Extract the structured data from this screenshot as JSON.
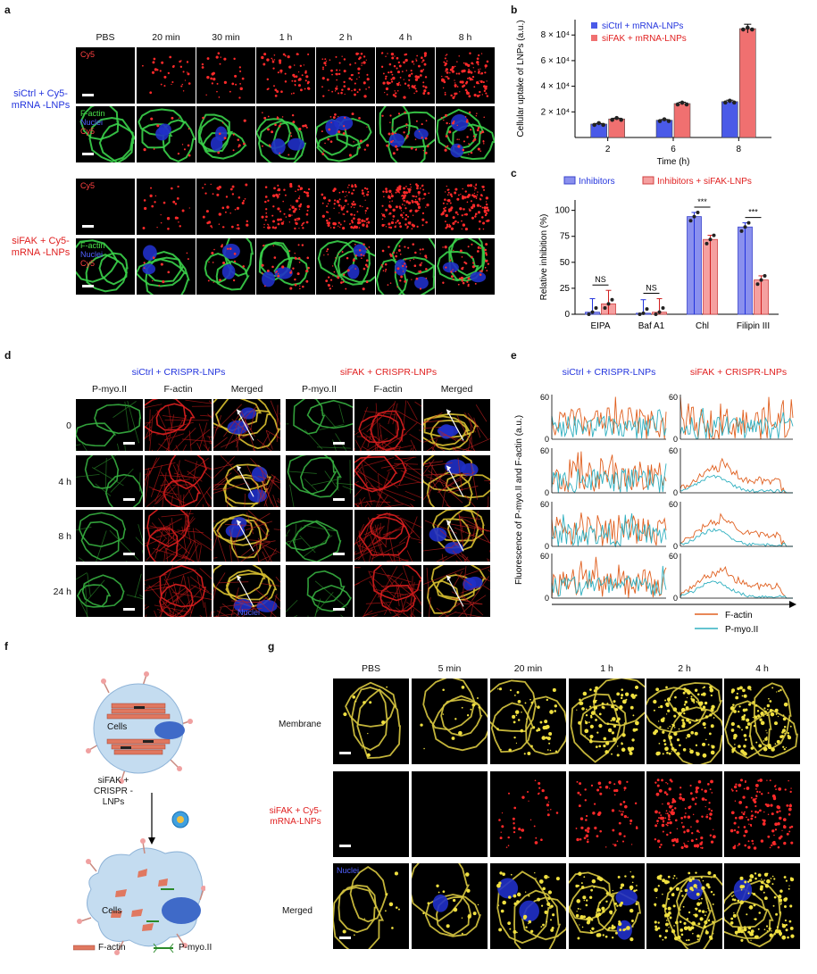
{
  "panel_letters": {
    "a": "a",
    "b": "b",
    "c": "c",
    "d": "d",
    "e": "e",
    "f": "f",
    "g": "g"
  },
  "a": {
    "columns": [
      "PBS",
      "20 min",
      "30 min",
      "1 h",
      "2 h",
      "4 h",
      "8 h"
    ],
    "group1": "siCtrl + Cy5-mRNA -LNPs",
    "group2": "siFAK + Cy5-mRNA -LNPs",
    "ch_cy5": "Cy5",
    "ch_factin": "F-actin",
    "ch_nuclei": "Nuclei"
  },
  "b": {
    "chart_data": {
      "type": "bar",
      "categories": [
        "2",
        "6",
        "8"
      ],
      "series": [
        {
          "name": "siCtrl + mRNA-LNPs",
          "values": [
            10500,
            13500,
            28000
          ],
          "color": "#4a5ae8"
        },
        {
          "name": "siFAK + mRNA-LNPs",
          "values": [
            14500,
            26500,
            85000
          ],
          "color": "#f07070"
        }
      ],
      "xlabel": "Time (h)",
      "ylabel": "Cellular uptake of LNPs (a.u.)",
      "yticks": [
        "2 × 10⁴",
        "4 × 10⁴",
        "6 × 10⁴",
        "8 × 10⁴"
      ],
      "ylim": [
        0,
        92000
      ],
      "legend": "top-left"
    }
  },
  "c": {
    "chart_data": {
      "type": "bar",
      "categories": [
        "EIPA",
        "Baf A1",
        "Chl",
        "Filipin III"
      ],
      "series": [
        {
          "name": "Inhibitors",
          "values": [
            2,
            1,
            94,
            84
          ],
          "color": "#8a90ee"
        },
        {
          "name": "Inhibitors + siFAK-LNPs",
          "values": [
            10,
            2,
            72,
            33
          ],
          "color": "#f5a0a0"
        }
      ],
      "ylabel": "Relative inhibition (%)",
      "yticks": [
        "0",
        "25",
        "50",
        "75",
        "100"
      ],
      "ylim": [
        0,
        110
      ],
      "significance": [
        "NS",
        "NS",
        "***",
        "***"
      ],
      "legend": "top"
    }
  },
  "d": {
    "group1": "siCtrl + CRISPR-LNPs",
    "group2": "siFAK + CRISPR-LNPs",
    "columns": [
      "P-myo.II",
      "F-actin",
      "Merged",
      "P-myo.II",
      "F-actin",
      "Merged"
    ],
    "rows": [
      "0",
      "4 h",
      "8 h",
      "24 h"
    ],
    "nuclei": "Nuclei"
  },
  "e": {
    "group1": "siCtrl + CRISPR-LNPs",
    "group2": "siFAK + CRISPR-LNPs",
    "ylabel": "Fluorescence of P-myo.II and F-actin (a.u.)",
    "ytick_top": "60",
    "ytick_zero": "0",
    "legend": [
      {
        "name": "F-actin",
        "color": "#e06020"
      },
      {
        "name": "P-myo.II",
        "color": "#30b0c0"
      }
    ]
  },
  "f": {
    "cells_top": "Cells",
    "cells_bottom": "Cells",
    "treatment": "siFAK + CRISPR -LNPs",
    "legend_factin": "F-actin",
    "legend_pmyo": "P-myo.II"
  },
  "g": {
    "columns": [
      "PBS",
      "5 min",
      "20 min",
      "1 h",
      "2 h",
      "4 h"
    ],
    "row1": "Membrane",
    "row2": "siFAK + Cy5-mRNA-LNPs",
    "row3": "Merged",
    "nuclei": "Nuclei"
  }
}
